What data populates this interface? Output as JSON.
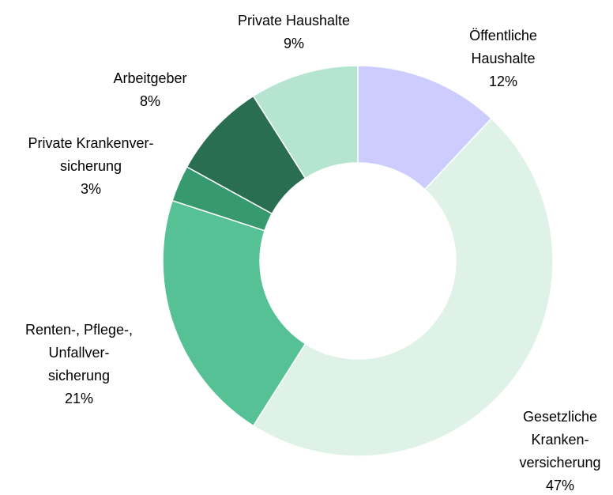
{
  "chart_data": {
    "type": "donut",
    "categories": [
      "Öffentliche\nHaushalte",
      "Gesetzliche\nKranken-\nversicherung",
      "Renten-, Pflege-,\nUnfallver-\nsicherung",
      "Private Krankenver-\nsicherung",
      "Arbeitgeber",
      "Private Haushalte"
    ],
    "values": [
      12,
      47,
      21,
      3,
      8,
      9
    ],
    "value_labels": [
      "12%",
      "47%",
      "21%",
      "3%",
      "8%",
      "9%"
    ],
    "colors": [
      "#ccccff",
      "#dff2e8",
      "#55c195",
      "#379a6e",
      "#2a6e52",
      "#b5e4d0"
    ]
  }
}
